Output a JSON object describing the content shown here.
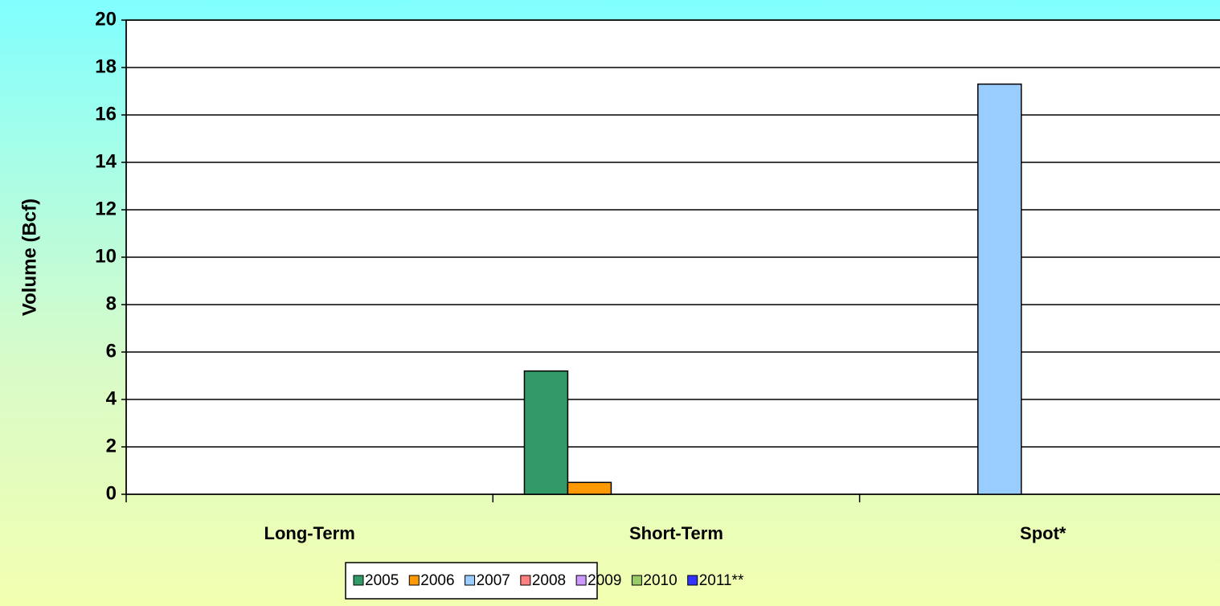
{
  "chart_data": {
    "type": "bar",
    "y_label": "Volume (Bcf)",
    "categories": [
      "Long-Term",
      "Short-Term",
      "Spot*"
    ],
    "series": [
      {
        "name": "2005",
        "color": "#339966",
        "values": [
          0,
          5.2,
          0
        ]
      },
      {
        "name": "2006",
        "color": "#ff9900",
        "values": [
          0,
          0.5,
          0
        ]
      },
      {
        "name": "2007",
        "color": "#99ccff",
        "values": [
          0,
          0,
          17.3
        ]
      },
      {
        "name": "2008",
        "color": "#ff8080",
        "values": [
          0,
          0,
          0
        ]
      },
      {
        "name": "2009",
        "color": "#cc99ff",
        "values": [
          0,
          0,
          0
        ]
      },
      {
        "name": "2010",
        "color": "#99cc66",
        "values": [
          0,
          0,
          0
        ]
      },
      {
        "name": "2011**",
        "color": "#3333ff",
        "values": [
          0,
          0,
          0
        ]
      }
    ],
    "ylim": [
      0,
      20
    ],
    "yticks": [
      0,
      2,
      4,
      6,
      8,
      10,
      12,
      14,
      16,
      18,
      20
    ],
    "grid": true,
    "legend": "bottom"
  }
}
